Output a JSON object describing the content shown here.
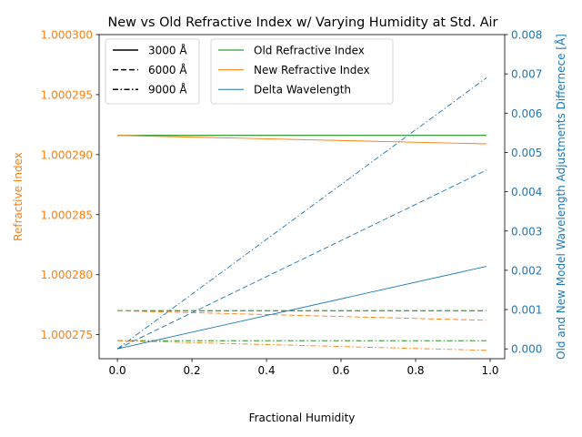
{
  "chart_data": {
    "type": "line",
    "title": "New vs Old Refractive Index w/ Varying Humidity at Std. Air",
    "xlabel": "Fractional Humidity",
    "ylabel_left": "Refractive Index",
    "ylabel_right": "Old and New Model Wavelength Adjustments Differnece [Å]",
    "xlim": [
      -0.049,
      1.039
    ],
    "ylim_left": [
      1.000273,
      1.0003
    ],
    "ylim_right": [
      -0.00025,
      0.008
    ],
    "x_ticks": [
      0.0,
      0.2,
      0.4,
      0.6,
      0.8,
      1.0
    ],
    "x_tick_labels": [
      "0.0",
      "0.2",
      "0.4",
      "0.6",
      "0.8",
      "1.0"
    ],
    "y_left_ticks": [
      1.000275,
      1.00028,
      1.000285,
      1.00029,
      1.000295,
      1.0003
    ],
    "y_left_tick_labels": [
      "1.000275",
      "1.000280",
      "1.000285",
      "1.000290",
      "1.000295",
      "1.000300"
    ],
    "y_right_ticks": [
      0.0,
      0.001,
      0.002,
      0.003,
      0.004,
      0.005,
      0.006,
      0.007,
      0.008
    ],
    "y_right_tick_labels": [
      "0.000",
      "0.001",
      "0.002",
      "0.003",
      "0.004",
      "0.005",
      "0.006",
      "0.007",
      "0.008"
    ],
    "colors": {
      "left_axis": "#ff7f0e",
      "right_axis": "#1f77b4",
      "old": "#008000",
      "new": "#ff7f0e",
      "delta": "#1f77b4"
    },
    "legend_styles": {
      "position": "upper-left",
      "entries": [
        {
          "label": "3000 Å",
          "dash": "solid"
        },
        {
          "label": "6000 Å",
          "dash": "dashed"
        },
        {
          "label": "9000 Å",
          "dash": "dashdot"
        }
      ]
    },
    "legend_series": {
      "position": "upper-center",
      "entries": [
        {
          "label": "Old Refractive Index",
          "color": "#008000"
        },
        {
          "label": "New Refractive Index",
          "color": "#ff7f0e"
        },
        {
          "label": "Delta Wavelength",
          "color": "#1f77b4"
        }
      ]
    },
    "series": [
      {
        "kind": "old",
        "wavelength": "3000 Å",
        "axis": "left",
        "dash": "solid",
        "x": [
          0.0,
          0.99
        ],
        "y": [
          1.0002916,
          1.0002916
        ]
      },
      {
        "kind": "new",
        "wavelength": "3000 Å",
        "axis": "left",
        "dash": "solid",
        "x": [
          0.0,
          0.99
        ],
        "y": [
          1.0002916,
          1.0002909
        ]
      },
      {
        "kind": "old",
        "wavelength": "6000 Å",
        "axis": "left",
        "dash": "dashed",
        "x": [
          0.0,
          0.99
        ],
        "y": [
          1.000277,
          1.000277
        ]
      },
      {
        "kind": "new",
        "wavelength": "6000 Å",
        "axis": "left",
        "dash": "dashed",
        "x": [
          0.0,
          0.99
        ],
        "y": [
          1.000277,
          1.0002762
        ]
      },
      {
        "kind": "old",
        "wavelength": "9000 Å",
        "axis": "left",
        "dash": "dashdot",
        "x": [
          0.0,
          0.99
        ],
        "y": [
          1.0002745,
          1.0002745
        ]
      },
      {
        "kind": "new",
        "wavelength": "9000 Å",
        "axis": "left",
        "dash": "dashdot",
        "x": [
          0.0,
          0.99
        ],
        "y": [
          1.0002745,
          1.0002737
        ]
      },
      {
        "kind": "delta",
        "wavelength": "3000 Å",
        "axis": "right",
        "dash": "solid",
        "x": [
          0.0,
          0.99
        ],
        "y": [
          0.0,
          0.0021
        ]
      },
      {
        "kind": "delta",
        "wavelength": "6000 Å",
        "axis": "right",
        "dash": "dashed",
        "x": [
          0.0,
          0.99
        ],
        "y": [
          0.0,
          0.00455
        ]
      },
      {
        "kind": "delta",
        "wavelength": "9000 Å",
        "axis": "right",
        "dash": "dashdot",
        "x": [
          0.0,
          0.99
        ],
        "y": [
          0.0,
          0.0069
        ]
      }
    ]
  }
}
